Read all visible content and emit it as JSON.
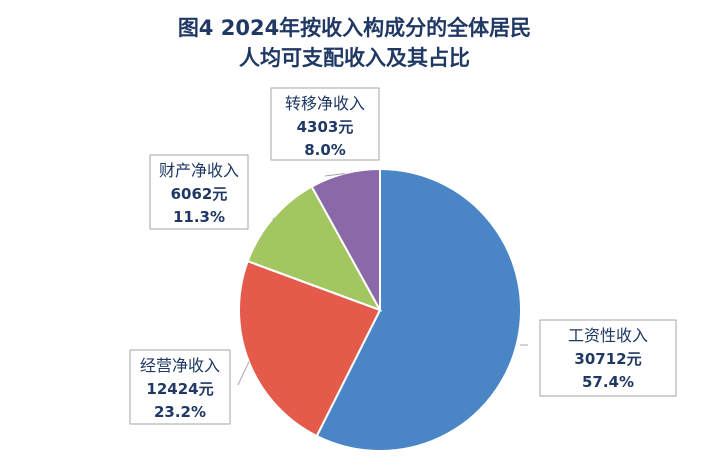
{
  "title_line1": "图4  2024年按收入构成分的全体居民",
  "title_line2": "人均可支配收入及其占比",
  "chart_data": {
    "type": "pie",
    "title": "图4  2024年按收入构成分的全体居民人均可支配收入及其占比",
    "unit": "元",
    "slices": [
      {
        "name": "工资性收入",
        "value": 30712,
        "value_label": "30712元",
        "percent_label": "57.4%",
        "percent": 57.4,
        "color": "#4a86c5"
      },
      {
        "name": "经营净收入",
        "value": 12424,
        "value_label": "12424元",
        "percent_label": "23.2%",
        "percent": 23.2,
        "color": "#e45a4b"
      },
      {
        "name": "财产净收入",
        "value": 6062,
        "value_label": "6062元",
        "percent_label": "11.3%",
        "percent": 11.3,
        "color": "#a3c760"
      },
      {
        "name": "转移净收入",
        "value": 4303,
        "value_label": "4303元",
        "percent_label": "8.0%",
        "percent": 8.0,
        "color": "#8b68a8"
      }
    ],
    "legend": "none"
  }
}
